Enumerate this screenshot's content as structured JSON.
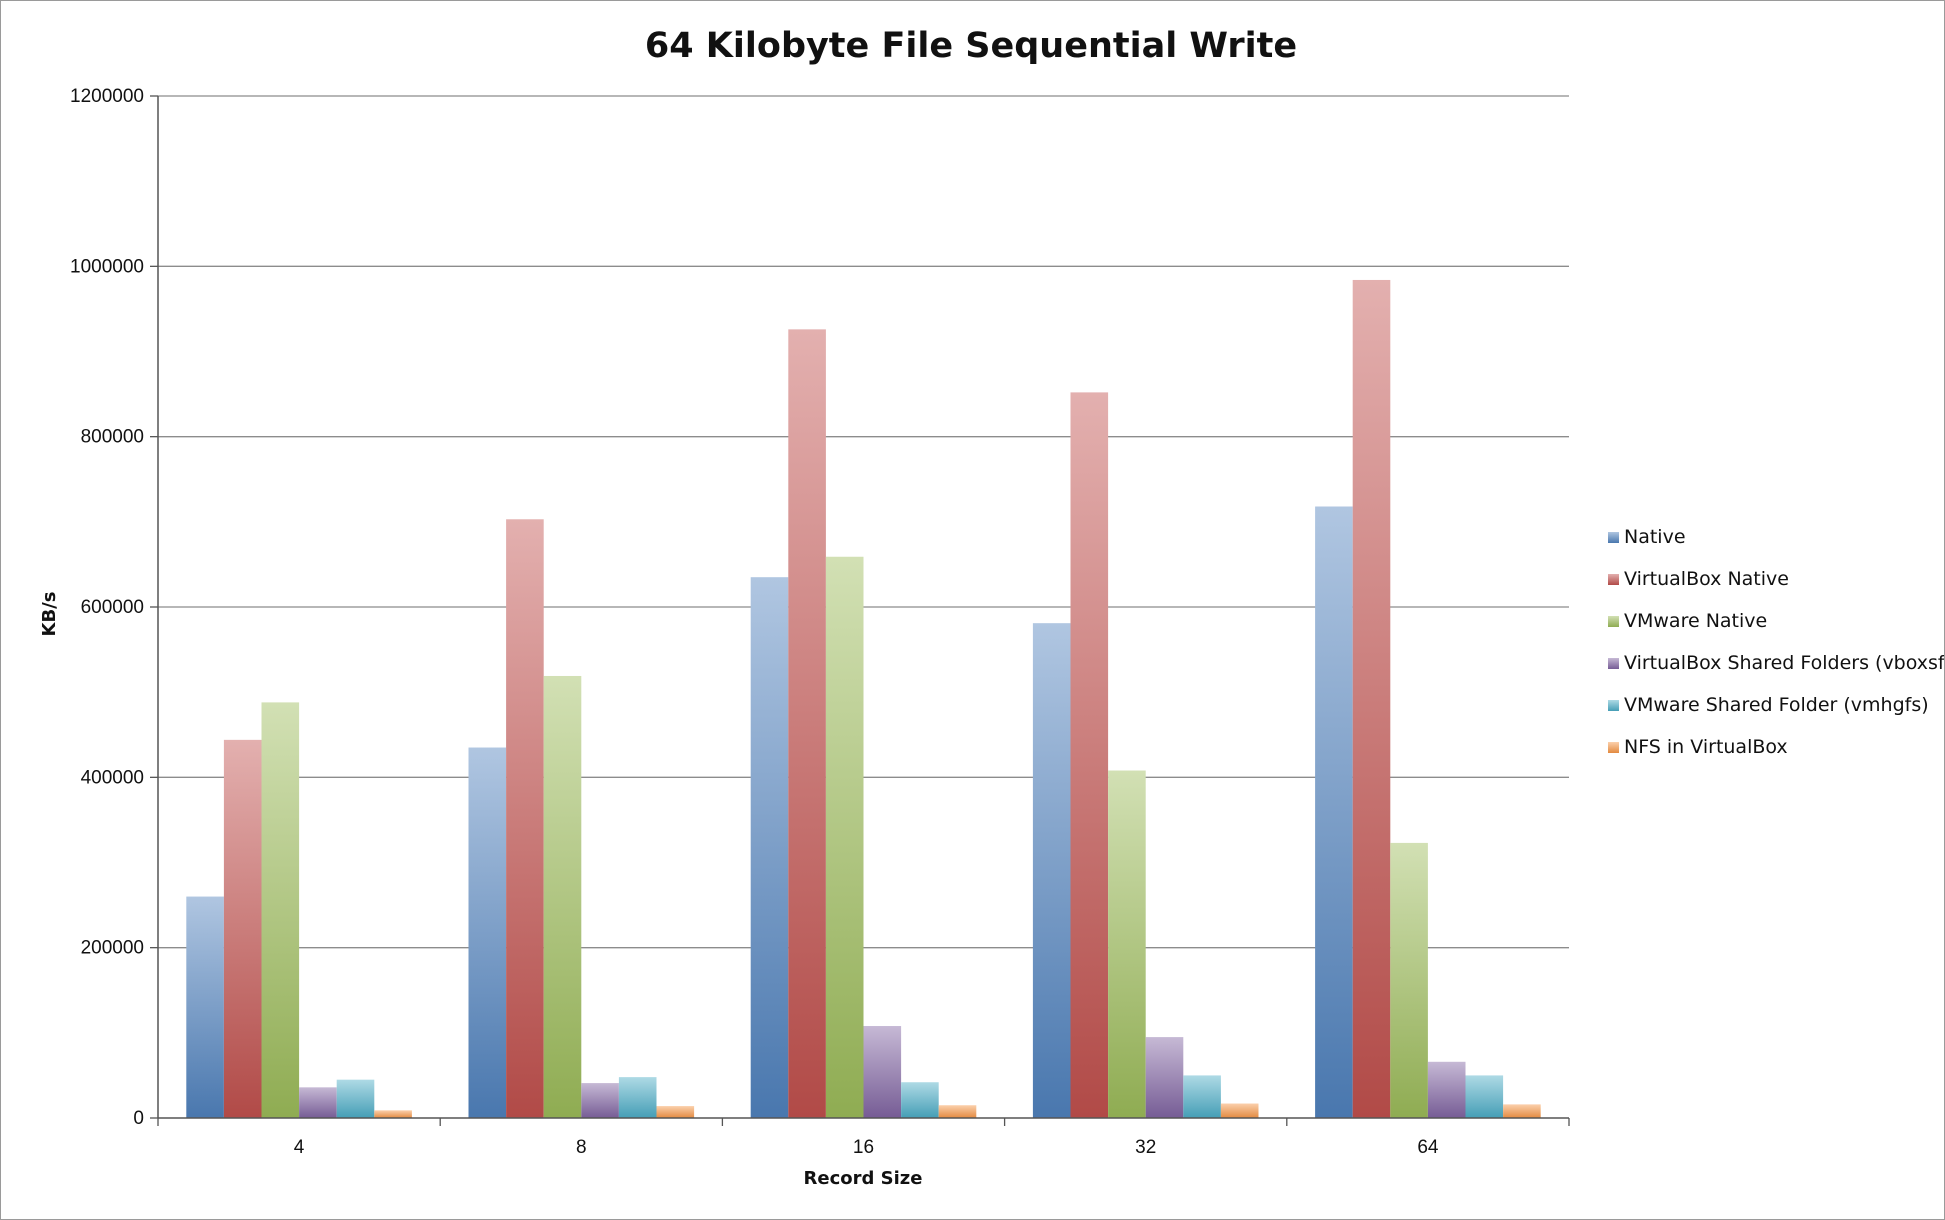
{
  "chart_data": {
    "type": "bar",
    "title": "64 Kilobyte File Sequential Write",
    "xlabel": "Record Size",
    "ylabel": "KB/s",
    "categories": [
      "4",
      "8",
      "16",
      "32",
      "64"
    ],
    "ylim": [
      0,
      1200000
    ],
    "yticks": [
      0,
      200000,
      400000,
      600000,
      800000,
      1000000,
      1200000
    ],
    "ytick_labels": [
      "0",
      "200000",
      "400000",
      "600000",
      "800000",
      "1000000",
      "1200000"
    ],
    "grid": true,
    "legend_position": "right",
    "series": [
      {
        "name": "Native",
        "color": "#4f81bd",
        "values": [
          260000,
          435000,
          635000,
          581000,
          718000
        ]
      },
      {
        "name": "VirtualBox Native",
        "color": "#c0504d",
        "values": [
          444000,
          703000,
          926000,
          852000,
          984000
        ]
      },
      {
        "name": "VMware Native",
        "color": "#9bbb59",
        "values": [
          488000,
          519000,
          659000,
          408000,
          323000
        ]
      },
      {
        "name": "VirtualBox Shared Folders (vboxsf)",
        "color": "#8064a2",
        "values": [
          36000,
          41000,
          108000,
          95000,
          66000
        ]
      },
      {
        "name": "VMware Shared Folder (vmhgfs)",
        "color": "#4bacc6",
        "values": [
          45000,
          48000,
          42000,
          50000,
          50000
        ]
      },
      {
        "name": "NFS in VirtualBox",
        "color": "#f79646",
        "values": [
          9000,
          14000,
          15000,
          17000,
          16000
        ]
      }
    ]
  }
}
